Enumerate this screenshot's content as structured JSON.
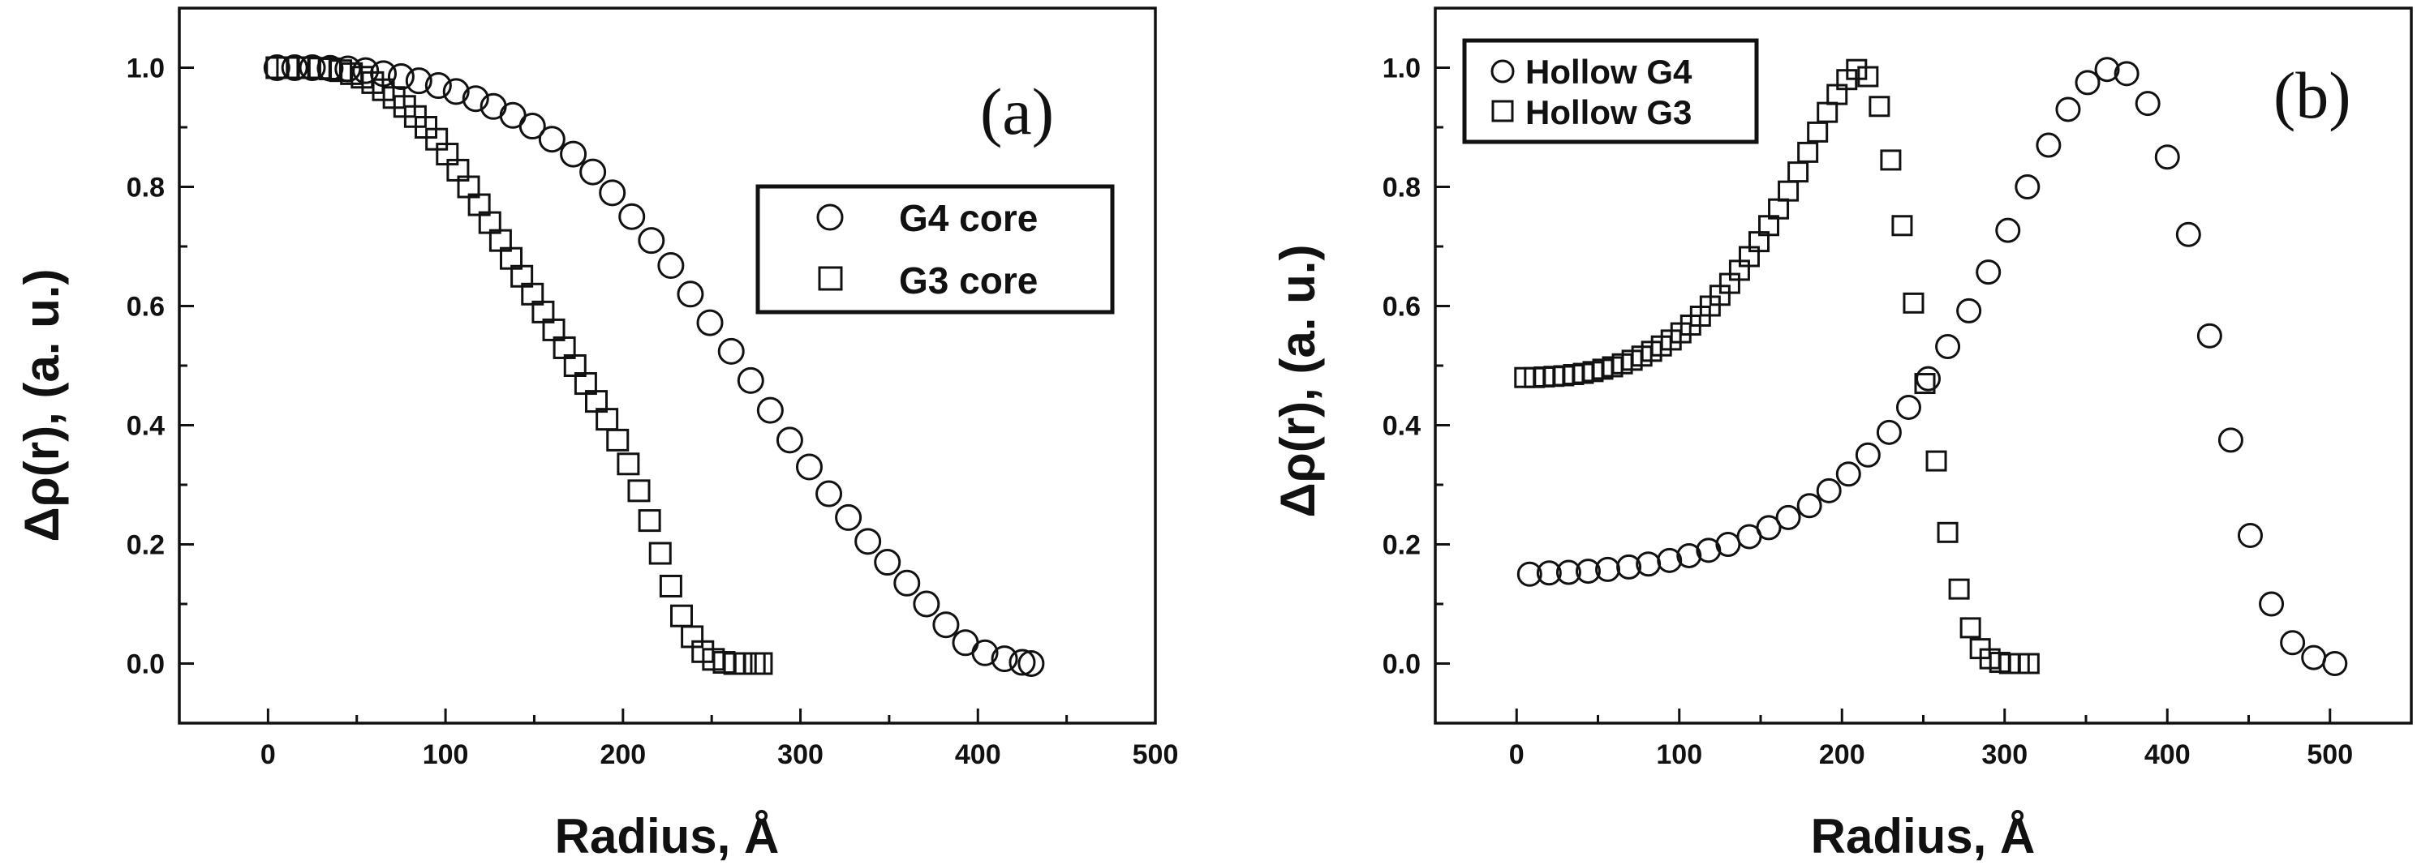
{
  "chart_data": [
    {
      "type": "scatter",
      "panel_label": "(a)",
      "xlabel": "Radius, Å",
      "ylabel": "Δρ(r), (a. u.)",
      "xlim": [
        -50,
        500
      ],
      "ylim": [
        -0.1,
        1.1
      ],
      "xticks": [
        "0",
        "100",
        "200",
        "300",
        "400",
        "500"
      ],
      "yticks": [
        "0.0",
        "0.2",
        "0.4",
        "0.6",
        "0.8",
        "1.0"
      ],
      "legend_placement": "middle-right",
      "series": [
        {
          "name": "G4 core",
          "marker": "circle",
          "x": [
            5,
            15,
            25,
            35,
            45,
            55,
            65,
            75,
            85,
            96,
            106,
            117,
            127,
            138,
            149,
            160,
            172,
            183,
            194,
            205,
            216,
            227,
            238,
            249,
            261,
            272,
            283,
            294,
            305,
            316,
            327,
            338,
            349,
            360,
            371,
            382,
            393,
            404,
            415,
            425,
            430
          ],
          "y": [
            1.0,
            1.0,
            1.0,
            0.999,
            0.998,
            0.995,
            0.99,
            0.985,
            0.978,
            0.97,
            0.96,
            0.948,
            0.935,
            0.92,
            0.902,
            0.88,
            0.855,
            0.825,
            0.79,
            0.75,
            0.71,
            0.668,
            0.62,
            0.572,
            0.524,
            0.475,
            0.425,
            0.375,
            0.33,
            0.285,
            0.245,
            0.205,
            0.17,
            0.135,
            0.1,
            0.065,
            0.035,
            0.018,
            0.008,
            0.002,
            0.0
          ]
        },
        {
          "name": "G3 core",
          "marker": "square",
          "x": [
            5,
            11,
            17,
            23,
            29,
            35,
            41,
            47,
            53,
            59,
            65,
            71,
            77,
            83,
            89,
            95,
            101,
            107,
            113,
            119,
            125,
            131,
            137,
            143,
            149,
            155,
            161,
            167,
            173,
            179,
            185,
            191,
            197,
            203,
            209,
            215,
            221,
            227,
            233,
            239,
            245,
            251,
            257,
            263,
            269,
            274,
            278
          ],
          "y": [
            1.0,
            1.0,
            1.0,
            1.0,
            0.999,
            0.998,
            0.995,
            0.99,
            0.984,
            0.975,
            0.963,
            0.95,
            0.935,
            0.918,
            0.9,
            0.88,
            0.855,
            0.828,
            0.8,
            0.77,
            0.74,
            0.71,
            0.68,
            0.65,
            0.62,
            0.59,
            0.56,
            0.53,
            0.5,
            0.47,
            0.44,
            0.41,
            0.375,
            0.335,
            0.29,
            0.24,
            0.185,
            0.13,
            0.08,
            0.045,
            0.02,
            0.007,
            0.002,
            0.0,
            0.0,
            0.0,
            0.0
          ]
        }
      ]
    },
    {
      "type": "scatter",
      "panel_label": "(b)",
      "xlabel": "Radius, Å",
      "ylabel": "Δρ(r), (a. u.)",
      "xlim": [
        -50,
        550
      ],
      "ylim": [
        -0.1,
        1.1
      ],
      "xticks": [
        "0",
        "100",
        "200",
        "300",
        "400",
        "500"
      ],
      "yticks": [
        "0.0",
        "0.2",
        "0.4",
        "0.6",
        "0.8",
        "1.0"
      ],
      "legend_placement": "top-left",
      "series": [
        {
          "name": "Hollow G4",
          "marker": "circle",
          "x": [
            8,
            20,
            32,
            44,
            56,
            69,
            81,
            94,
            106,
            118,
            130,
            143,
            155,
            167,
            180,
            192,
            204,
            216,
            229,
            241,
            253,
            265,
            278,
            290,
            302,
            314,
            327,
            339,
            351,
            363,
            375,
            388,
            400,
            413,
            426,
            439,
            451,
            464,
            477,
            490,
            503
          ],
          "y": [
            0.15,
            0.152,
            0.153,
            0.155,
            0.158,
            0.162,
            0.167,
            0.173,
            0.181,
            0.19,
            0.2,
            0.213,
            0.228,
            0.245,
            0.265,
            0.29,
            0.318,
            0.35,
            0.388,
            0.43,
            0.478,
            0.532,
            0.592,
            0.657,
            0.727,
            0.8,
            0.87,
            0.93,
            0.975,
            0.997,
            0.99,
            0.94,
            0.85,
            0.72,
            0.55,
            0.375,
            0.215,
            0.1,
            0.035,
            0.01,
            0.0
          ]
        },
        {
          "name": "Hollow G3",
          "marker": "square",
          "x": [
            5,
            11,
            17,
            23,
            29,
            35,
            41,
            47,
            53,
            59,
            65,
            71,
            77,
            83,
            89,
            95,
            101,
            107,
            113,
            119,
            125,
            131,
            137,
            143,
            149,
            155,
            161,
            167,
            173,
            179,
            185,
            191,
            197,
            203,
            209,
            216,
            223,
            230,
            237,
            244,
            251,
            258,
            265,
            272,
            279,
            285,
            291,
            297,
            303,
            309,
            315
          ],
          "y": [
            0.48,
            0.48,
            0.481,
            0.482,
            0.483,
            0.485,
            0.487,
            0.49,
            0.494,
            0.498,
            0.503,
            0.509,
            0.516,
            0.524,
            0.533,
            0.543,
            0.555,
            0.568,
            0.583,
            0.6,
            0.618,
            0.638,
            0.66,
            0.683,
            0.708,
            0.735,
            0.763,
            0.793,
            0.825,
            0.858,
            0.892,
            0.925,
            0.955,
            0.98,
            0.997,
            0.985,
            0.935,
            0.845,
            0.735,
            0.605,
            0.47,
            0.34,
            0.22,
            0.125,
            0.06,
            0.025,
            0.008,
            0.002,
            0.0,
            0.0,
            0.0
          ]
        }
      ]
    }
  ]
}
